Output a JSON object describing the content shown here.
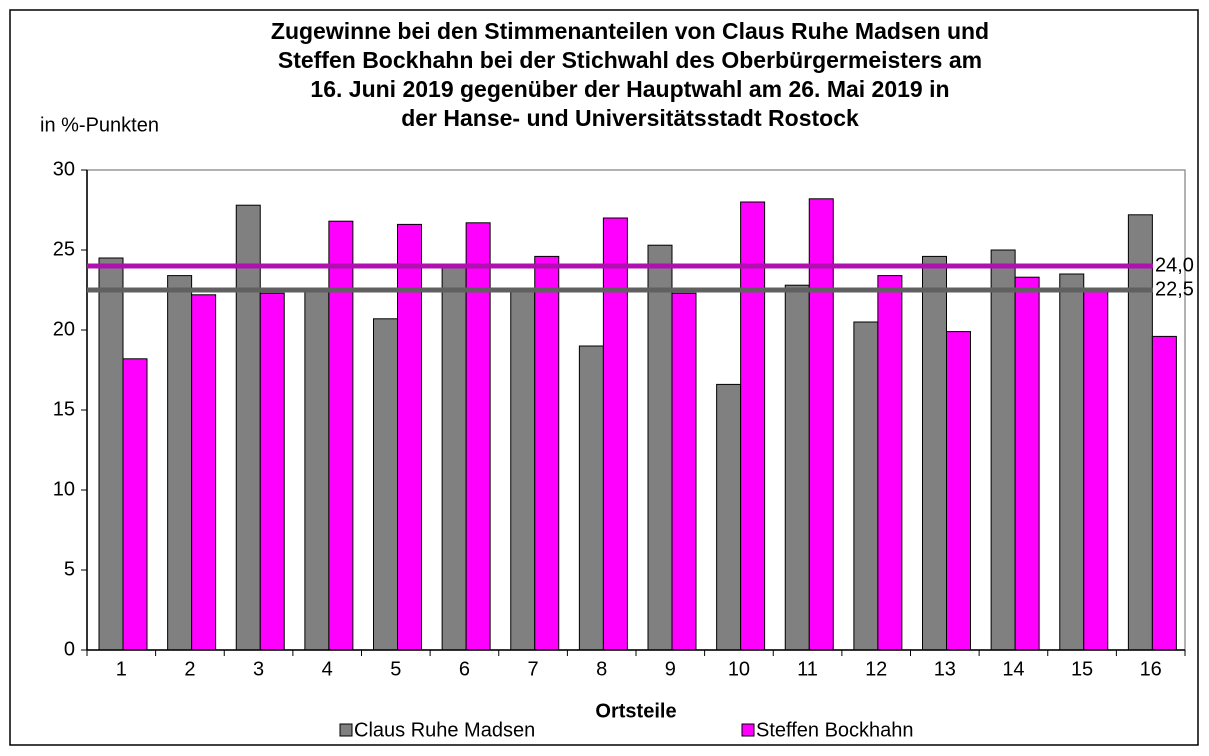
{
  "chart_data": {
    "type": "bar",
    "title": [
      "Zugewinne bei den Stimmenanteilen von Claus Ruhe Madsen und",
      "Steffen Bockhahn bei der Stichwahl des Oberbürgermeisters am",
      "16. Juni 2019 gegenüber der Hauptwahl am 26. Mai 2019 in",
      "der Hanse- und Universitätsstadt Rostock"
    ],
    "y_label": "in %-Punkten",
    "x_label": "Ortsteile",
    "categories": [
      "1",
      "2",
      "3",
      "4",
      "5",
      "6",
      "7",
      "8",
      "9",
      "10",
      "11",
      "12",
      "13",
      "14",
      "15",
      "16"
    ],
    "series": [
      {
        "name": "Claus Ruhe Madsen",
        "color": "#808080",
        "values": [
          24.5,
          23.4,
          27.8,
          22.6,
          20.7,
          24.0,
          22.6,
          19.0,
          25.3,
          16.6,
          22.8,
          20.5,
          24.6,
          25.0,
          23.5,
          27.2
        ]
      },
      {
        "name": "Steffen Bockhahn",
        "color": "#ff00ff",
        "values": [
          18.2,
          22.2,
          22.3,
          26.8,
          26.6,
          26.7,
          24.6,
          27.0,
          22.3,
          28.0,
          28.2,
          23.4,
          19.9,
          23.3,
          22.5,
          19.6
        ]
      }
    ],
    "reference_lines": [
      {
        "value": 24.0,
        "label": "24,0",
        "color": "#b010b0"
      },
      {
        "value": 22.5,
        "label": "22,5",
        "color": "#606060"
      }
    ],
    "ylim": [
      0,
      30
    ],
    "yticks": [
      0,
      5,
      10,
      15,
      20,
      25,
      30
    ]
  }
}
